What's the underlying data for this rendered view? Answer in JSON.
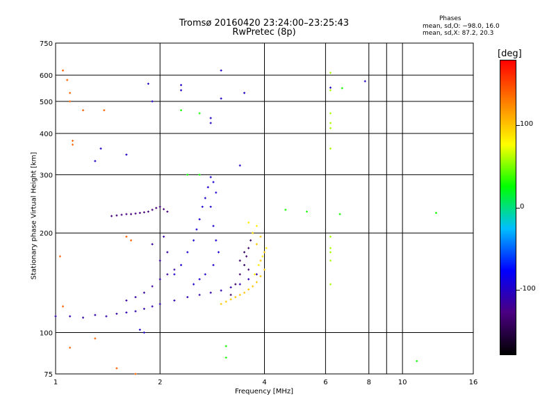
{
  "header": {
    "title_line1": "Tromsø 20160420 23:24:00–23:25:43",
    "title_line2": "RwPretec (8p)",
    "phases_title": "Phases",
    "phases_line_o": "mean, sd,O: −98.0, 16.0",
    "phases_line_x": "mean, sd,X:  87.2, 20.3"
  },
  "chart_data": {
    "type": "scatter",
    "xlabel": "Frequency [MHz]",
    "ylabel": "Stationary phase Virtual Height [km]",
    "x_scale": "log",
    "y_scale": "log",
    "xlim": [
      1,
      16
    ],
    "ylim": [
      75,
      750
    ],
    "x_ticks": [
      1,
      2,
      4,
      6,
      8,
      10,
      16
    ],
    "y_ticks": [
      75,
      100,
      200,
      300,
      400,
      500,
      600,
      750
    ],
    "grid": true,
    "colorbar": {
      "unit": "[deg]",
      "ticks": [
        100,
        0,
        -100
      ],
      "range": [
        -180,
        180
      ],
      "colors": [
        "#000000",
        "#4b0082",
        "#0000ff",
        "#00bfff",
        "#00ff00",
        "#ffff00",
        "#ff8000",
        "#ff0000"
      ]
    },
    "series": [
      {
        "values": [
          [
            1.0,
            112
          ],
          [
            1.1,
            112
          ],
          [
            1.2,
            111
          ],
          [
            1.3,
            113
          ],
          [
            1.4,
            112
          ],
          [
            1.5,
            114
          ],
          [
            1.6,
            115
          ],
          [
            1.7,
            116
          ],
          [
            1.8,
            118
          ],
          [
            1.9,
            120
          ],
          [
            2.0,
            122
          ],
          [
            2.2,
            125
          ],
          [
            2.4,
            128
          ],
          [
            2.6,
            130
          ],
          [
            2.8,
            132
          ],
          [
            3.0,
            134
          ],
          [
            3.2,
            137
          ],
          [
            3.4,
            140
          ],
          [
            3.6,
            145
          ],
          [
            3.8,
            150
          ]
        ],
        "phase": -110
      },
      {
        "values": [
          [
            1.45,
            225
          ],
          [
            1.5,
            226
          ],
          [
            1.55,
            227
          ],
          [
            1.6,
            228
          ],
          [
            1.65,
            228
          ],
          [
            1.7,
            229
          ],
          [
            1.75,
            230
          ],
          [
            1.8,
            231
          ],
          [
            1.85,
            232
          ],
          [
            1.9,
            235
          ],
          [
            1.95,
            238
          ],
          [
            2.0,
            240
          ],
          [
            2.05,
            236
          ],
          [
            2.1,
            232
          ]
        ],
        "phase": -130
      },
      {
        "values": [
          [
            2.2,
            150
          ],
          [
            2.3,
            160
          ],
          [
            2.4,
            175
          ],
          [
            2.5,
            190
          ],
          [
            2.55,
            205
          ],
          [
            2.6,
            220
          ],
          [
            2.65,
            240
          ],
          [
            2.7,
            255
          ],
          [
            2.75,
            275
          ],
          [
            2.8,
            295
          ],
          [
            2.85,
            285
          ],
          [
            2.9,
            265
          ],
          [
            2.8,
            240
          ],
          [
            2.85,
            210
          ],
          [
            2.9,
            190
          ],
          [
            2.95,
            175
          ],
          [
            2.85,
            160
          ],
          [
            2.7,
            150
          ],
          [
            2.6,
            145
          ],
          [
            2.5,
            140
          ]
        ],
        "phase": -95
      },
      {
        "values": [
          [
            1.6,
            125
          ],
          [
            1.7,
            128
          ],
          [
            1.8,
            132
          ],
          [
            1.9,
            138
          ],
          [
            2.0,
            145
          ],
          [
            2.1,
            150
          ],
          [
            2.2,
            155
          ],
          [
            2.0,
            165
          ],
          [
            2.1,
            175
          ],
          [
            1.9,
            185
          ],
          [
            2.05,
            195
          ]
        ],
        "phase": -115
      },
      {
        "values": [
          [
            3.2,
            130
          ],
          [
            3.3,
            140
          ],
          [
            3.4,
            150
          ],
          [
            3.5,
            160
          ],
          [
            3.55,
            170
          ],
          [
            3.6,
            180
          ],
          [
            3.65,
            190
          ],
          [
            3.7,
            200
          ],
          [
            3.5,
            175
          ],
          [
            3.4,
            165
          ],
          [
            3.6,
            155
          ]
        ],
        "phase": -140
      },
      {
        "values": [
          [
            3.0,
            122
          ],
          [
            3.1,
            124
          ],
          [
            3.2,
            126
          ],
          [
            3.3,
            128
          ],
          [
            3.4,
            130
          ],
          [
            3.5,
            132
          ],
          [
            3.6,
            135
          ],
          [
            3.7,
            138
          ],
          [
            3.8,
            142
          ],
          [
            3.9,
            148
          ],
          [
            4.0,
            155
          ],
          [
            3.9,
            165
          ],
          [
            4.0,
            175
          ],
          [
            3.8,
            185
          ],
          [
            3.9,
            195
          ]
        ],
        "phase": 100
      },
      {
        "values": [
          [
            3.75,
            150
          ],
          [
            3.85,
            160
          ],
          [
            3.95,
            170
          ],
          [
            4.05,
            180
          ],
          [
            3.7,
            200
          ],
          [
            3.8,
            210
          ],
          [
            3.6,
            215
          ]
        ],
        "phase": 85
      },
      {
        "values": [
          [
            6.2,
            610
          ],
          [
            6.2,
            540
          ],
          [
            6.2,
            460
          ],
          [
            6.2,
            430
          ],
          [
            6.2,
            415
          ],
          [
            6.2,
            360
          ],
          [
            6.2,
            195
          ],
          [
            6.2,
            180
          ],
          [
            6.2,
            175
          ],
          [
            6.2,
            165
          ],
          [
            6.2,
            140
          ]
        ],
        "phase": 60
      },
      {
        "values": [
          [
            1.05,
            620
          ],
          [
            1.08,
            580
          ],
          [
            1.1,
            530
          ],
          [
            1.1,
            500
          ],
          [
            1.12,
            380
          ],
          [
            1.12,
            370
          ],
          [
            1.2,
            470
          ],
          [
            1.38,
            470
          ],
          [
            1.03,
            170
          ],
          [
            1.05,
            120
          ],
          [
            1.1,
            90
          ],
          [
            1.3,
            96
          ],
          [
            1.5,
            78
          ],
          [
            1.7,
            75
          ],
          [
            1.6,
            195
          ],
          [
            1.65,
            190
          ]
        ],
        "phase": 140
      },
      {
        "values": [
          [
            1.3,
            330
          ],
          [
            1.35,
            360
          ],
          [
            1.6,
            345
          ],
          [
            1.85,
            565
          ],
          [
            1.9,
            500
          ],
          [
            2.3,
            560
          ],
          [
            2.3,
            540
          ],
          [
            2.8,
            445
          ],
          [
            2.8,
            430
          ],
          [
            3.0,
            620
          ],
          [
            3.0,
            510
          ],
          [
            3.4,
            320
          ],
          [
            3.5,
            530
          ],
          [
            6.2,
            550
          ],
          [
            7.8,
            575
          ],
          [
            1.8,
            100
          ],
          [
            1.75,
            102
          ]
        ],
        "phase": -100
      },
      {
        "values": [
          [
            2.3,
            470
          ],
          [
            2.6,
            460
          ],
          [
            2.4,
            300
          ],
          [
            2.6,
            300
          ],
          [
            4.6,
            235
          ],
          [
            5.3,
            232
          ],
          [
            6.6,
            228
          ],
          [
            6.7,
            548
          ],
          [
            12.5,
            230
          ],
          [
            11.0,
            82
          ],
          [
            3.1,
            91
          ],
          [
            3.1,
            84
          ]
        ],
        "phase": 30
      }
    ]
  }
}
